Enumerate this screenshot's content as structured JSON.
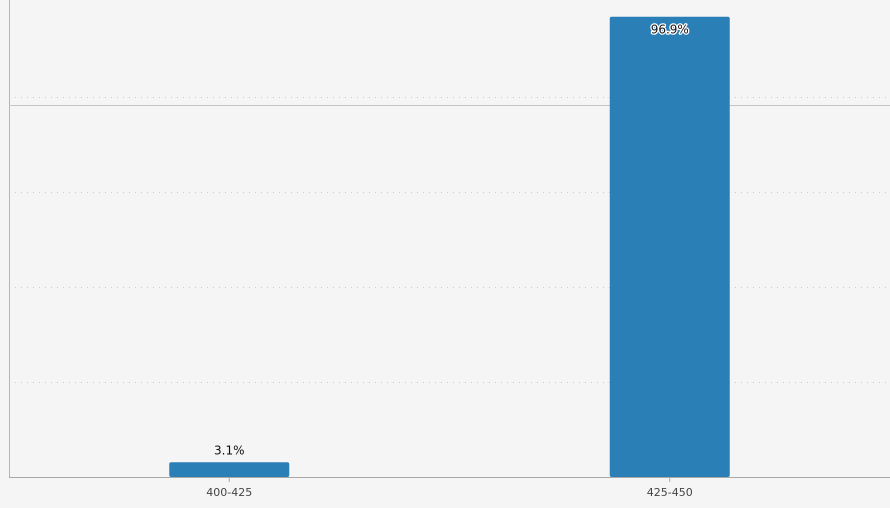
{
  "chart_data": {
    "type": "bar",
    "categories": [
      "400-425",
      "425-450"
    ],
    "values": [
      3.1,
      96.9
    ],
    "data_labels": [
      "3.1%",
      "96.9%"
    ],
    "unit": "%",
    "ylim": [
      0,
      100
    ],
    "grid": true,
    "bar_color": "#2a7fb7",
    "title": "",
    "xlabel": "",
    "ylabel": ""
  }
}
